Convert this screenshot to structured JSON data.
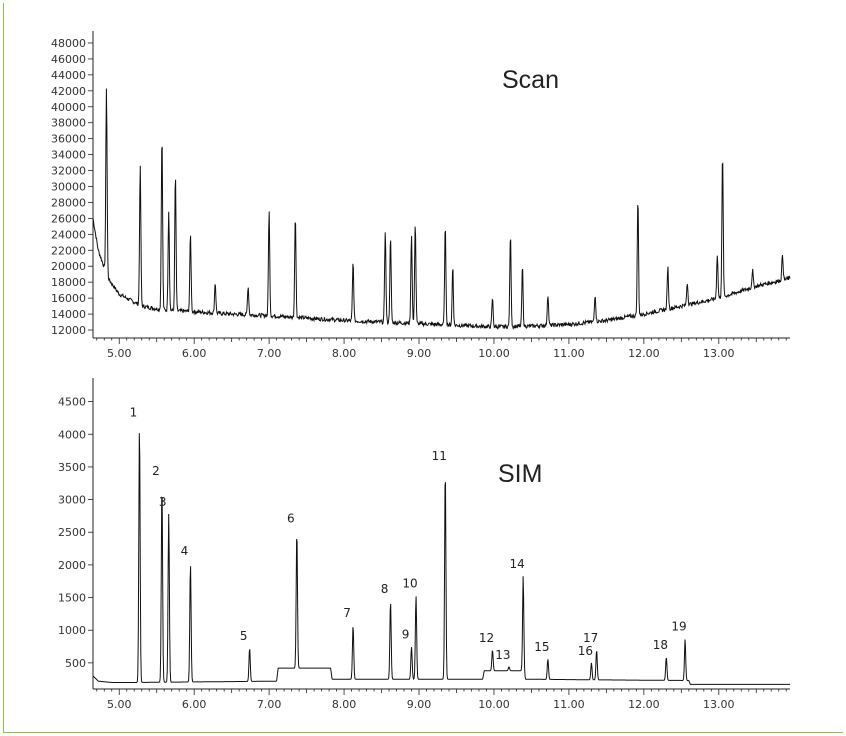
{
  "chart_data": [
    {
      "type": "line",
      "title": "Scan",
      "xlabel": "",
      "ylabel": "",
      "xlim": [
        4.65,
        13.95
      ],
      "ylim": [
        11000,
        49000
      ],
      "x_ticks": [
        "5.00",
        "6.00",
        "7.00",
        "8.00",
        "9.00",
        "10.00",
        "11.00",
        "12.00",
        "13.00"
      ],
      "y_ticks": [
        "12000",
        "14000",
        "16000",
        "18000",
        "20000",
        "22000",
        "24000",
        "26000",
        "28000",
        "30000",
        "32000",
        "34000",
        "36000",
        "38000",
        "40000",
        "42000",
        "44000",
        "46000",
        "48000"
      ],
      "grid": false,
      "baseline": [
        [
          4.65,
          26000
        ],
        [
          4.72,
          22000
        ],
        [
          4.85,
          18500
        ],
        [
          5.0,
          16500
        ],
        [
          5.3,
          15000
        ],
        [
          5.6,
          14500
        ],
        [
          6.0,
          14300
        ],
        [
          6.5,
          14000
        ],
        [
          7.0,
          13800
        ],
        [
          7.5,
          13500
        ],
        [
          8.0,
          13200
        ],
        [
          8.5,
          13000
        ],
        [
          9.0,
          12800
        ],
        [
          9.5,
          12600
        ],
        [
          10.0,
          12400
        ],
        [
          10.5,
          12500
        ],
        [
          11.0,
          12700
        ],
        [
          11.5,
          13200
        ],
        [
          12.0,
          14000
        ],
        [
          12.5,
          15000
        ],
        [
          13.0,
          16000
        ],
        [
          13.5,
          17500
        ],
        [
          13.95,
          18500
        ]
      ],
      "peaks": [
        {
          "x": 4.83,
          "y": 42500
        },
        {
          "x": 5.28,
          "y": 32500
        },
        {
          "x": 5.57,
          "y": 36500
        },
        {
          "x": 5.66,
          "y": 27000
        },
        {
          "x": 5.75,
          "y": 31500
        },
        {
          "x": 5.95,
          "y": 24000
        },
        {
          "x": 6.28,
          "y": 18000
        },
        {
          "x": 6.72,
          "y": 17500
        },
        {
          "x": 7.0,
          "y": 27000
        },
        {
          "x": 7.35,
          "y": 26500
        },
        {
          "x": 8.12,
          "y": 20500
        },
        {
          "x": 8.55,
          "y": 24500
        },
        {
          "x": 8.62,
          "y": 23500
        },
        {
          "x": 8.9,
          "y": 24000
        },
        {
          "x": 8.95,
          "y": 25500
        },
        {
          "x": 9.35,
          "y": 25000
        },
        {
          "x": 9.45,
          "y": 20000
        },
        {
          "x": 9.98,
          "y": 16000
        },
        {
          "x": 10.22,
          "y": 24000
        },
        {
          "x": 10.38,
          "y": 20000
        },
        {
          "x": 10.72,
          "y": 16500
        },
        {
          "x": 11.35,
          "y": 16500
        },
        {
          "x": 11.92,
          "y": 28500
        },
        {
          "x": 12.32,
          "y": 20000
        },
        {
          "x": 12.58,
          "y": 18000
        },
        {
          "x": 12.98,
          "y": 21500
        },
        {
          "x": 13.05,
          "y": 34000
        },
        {
          "x": 13.45,
          "y": 19500
        },
        {
          "x": 13.85,
          "y": 21500
        }
      ]
    },
    {
      "type": "line",
      "title": "SIM",
      "xlabel": "",
      "ylabel": "",
      "xlim": [
        4.65,
        13.95
      ],
      "ylim": [
        100,
        4800
      ],
      "x_ticks": [
        "5.00",
        "6.00",
        "7.00",
        "8.00",
        "9.00",
        "10.00",
        "11.00",
        "12.00",
        "13.00"
      ],
      "y_ticks": [
        "500",
        "1000",
        "1500",
        "2000",
        "2500",
        "3000",
        "3500",
        "4000",
        "4500"
      ],
      "grid": false,
      "baseline": [
        [
          4.65,
          300
        ],
        [
          4.72,
          220
        ],
        [
          4.9,
          200
        ],
        [
          5.23,
          200
        ],
        [
          5.23,
          200
        ],
        [
          7.1,
          220
        ],
        [
          7.12,
          420
        ],
        [
          7.82,
          420
        ],
        [
          7.84,
          250
        ],
        [
          9.85,
          250
        ],
        [
          9.87,
          380
        ],
        [
          10.4,
          380
        ],
        [
          10.42,
          250
        ],
        [
          11.4,
          240
        ],
        [
          12.6,
          230
        ],
        [
          12.62,
          170
        ],
        [
          13.95,
          170
        ]
      ],
      "peaks": [
        {
          "label": "1",
          "x": 5.27,
          "y": 4150
        },
        {
          "label": "2",
          "x": 5.57,
          "y": 3250
        },
        {
          "label": "3",
          "x": 5.66,
          "y": 2780
        },
        {
          "label": "4",
          "x": 5.95,
          "y": 2030
        },
        {
          "label": "5",
          "x": 6.74,
          "y": 730
        },
        {
          "label": "6",
          "x": 7.37,
          "y": 2530
        },
        {
          "label": "7",
          "x": 8.12,
          "y": 1080
        },
        {
          "label": "8",
          "x": 8.62,
          "y": 1450
        },
        {
          "label": "9",
          "x": 8.9,
          "y": 750
        },
        {
          "label": "10",
          "x": 8.96,
          "y": 1530
        },
        {
          "label": "11",
          "x": 9.35,
          "y": 3480
        },
        {
          "label": "12",
          "x": 9.98,
          "y": 700
        },
        {
          "label": "13",
          "x": 10.2,
          "y": 440
        },
        {
          "label": "14",
          "x": 10.39,
          "y": 1830
        },
        {
          "label": "15",
          "x": 10.72,
          "y": 560
        },
        {
          "label": "16",
          "x": 11.3,
          "y": 500
        },
        {
          "label": "17",
          "x": 11.37,
          "y": 700
        },
        {
          "label": "18",
          "x": 12.3,
          "y": 590
        },
        {
          "label": "19",
          "x": 12.55,
          "y": 870
        }
      ]
    }
  ]
}
